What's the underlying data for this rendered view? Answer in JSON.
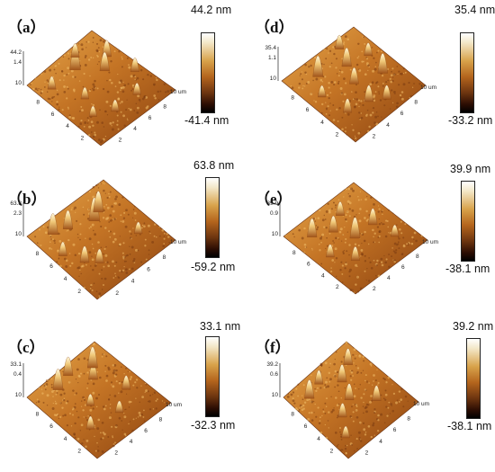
{
  "panels": [
    {
      "id": "a",
      "label": "（a）",
      "zmax": "44.2 nm",
      "zmin": "-41.4 nm",
      "z_top": "44.2",
      "z_mid": "1.4",
      "xy_max": "10",
      "x_unit": "10 um",
      "peaks": [
        [
          5,
          8,
          1.0
        ],
        [
          8.5,
          7,
          0.7
        ],
        [
          7,
          6,
          0.8
        ],
        [
          3,
          5,
          0.5
        ],
        [
          6.2,
          9,
          0.6
        ],
        [
          2,
          3,
          0.45
        ],
        [
          4,
          2,
          0.5
        ],
        [
          1.5,
          8,
          0.55
        ],
        [
          9,
          4,
          0.6
        ],
        [
          7,
          2,
          0.5
        ]
      ]
    },
    {
      "id": "d",
      "label": "（d）",
      "zmax": "35.4 nm",
      "zmin": "-33.2 nm",
      "z_top": "35.4",
      "z_mid": "1.1",
      "xy_max": "10",
      "x_unit": "10 um",
      "peaks": [
        [
          3,
          8,
          0.9
        ],
        [
          6,
          7,
          0.8
        ],
        [
          5,
          5,
          0.7
        ],
        [
          8,
          4,
          0.85
        ],
        [
          2,
          3,
          0.6
        ],
        [
          4.5,
          2.5,
          0.7
        ],
        [
          7,
          9,
          0.6
        ],
        [
          8.5,
          6.5,
          0.55
        ],
        [
          1.5,
          6,
          0.5
        ],
        [
          6,
          1.5,
          0.6
        ]
      ]
    },
    {
      "id": "b",
      "label": "（b）",
      "zmax": "63.8 nm",
      "zmin": "-59.2 nm",
      "z_top": "63.8",
      "z_mid": "2.3",
      "xy_max": "10",
      "x_unit": "10 um",
      "peaks": [
        [
          2,
          8.5,
          0.9
        ],
        [
          3.5,
          8,
          0.8
        ],
        [
          6,
          7,
          1.0
        ],
        [
          7,
          7.5,
          0.9
        ],
        [
          2,
          4,
          0.7
        ],
        [
          3,
          3,
          0.6
        ],
        [
          8,
          3,
          0.5
        ],
        [
          1,
          6,
          0.6
        ]
      ]
    },
    {
      "id": "e",
      "label": "（e）",
      "zmax": "39.9 nm",
      "zmin": "-38.1 nm",
      "z_top": "39.9",
      "z_mid": "0.9",
      "xy_max": "10",
      "x_unit": "10 um",
      "peaks": [
        [
          2,
          8,
          0.8
        ],
        [
          4,
          7,
          0.7
        ],
        [
          6,
          8,
          0.6
        ],
        [
          5,
          5,
          0.9
        ],
        [
          7.5,
          5,
          0.7
        ],
        [
          3,
          3,
          0.6
        ],
        [
          8,
          2.5,
          0.5
        ],
        [
          1.5,
          5,
          0.55
        ]
      ]
    },
    {
      "id": "c",
      "label": "（c）",
      "zmax": "33.1 nm",
      "zmin": "-32.3 nm",
      "z_top": "33.1",
      "z_mid": "0.4",
      "xy_max": "10",
      "x_unit": "10 um",
      "peaks": [
        [
          3,
          8.5,
          0.9
        ],
        [
          5,
          9,
          0.8
        ],
        [
          6.5,
          7,
          0.7
        ],
        [
          7.5,
          8,
          0.9
        ],
        [
          4,
          5,
          0.5
        ],
        [
          2,
          3,
          0.55
        ],
        [
          8,
          4,
          0.6
        ],
        [
          5.5,
          2.5,
          0.5
        ]
      ]
    },
    {
      "id": "f",
      "label": "（f）",
      "zmax": "39.2 nm",
      "zmin": "-38.1 nm",
      "z_top": "39.2",
      "z_mid": "0.6",
      "xy_max": "10",
      "x_unit": "10 um",
      "peaks": [
        [
          2,
          8,
          0.8
        ],
        [
          4,
          8.5,
          0.6
        ],
        [
          6,
          7,
          0.75
        ],
        [
          8,
          8,
          0.7
        ],
        [
          3,
          4,
          0.6
        ],
        [
          5,
          5,
          0.7
        ],
        [
          7,
          3,
          0.65
        ],
        [
          1.5,
          2,
          0.5
        ]
      ]
    }
  ],
  "axis_ticks": [
    "2",
    "4",
    "6",
    "8"
  ]
}
